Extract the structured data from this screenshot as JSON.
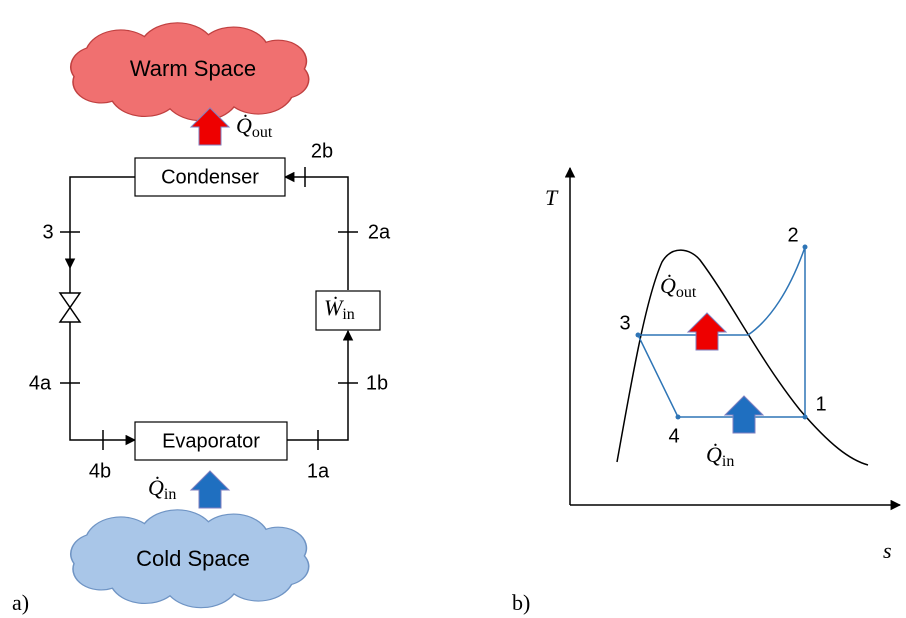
{
  "left": {
    "panel_label": "a)",
    "warm_space": "Warm Space",
    "cold_space": "Cold Space",
    "condenser": "Condenser",
    "evaporator": "Evaporator",
    "q_out": {
      "symbol": "Q̇",
      "subscript": "out"
    },
    "q_in": {
      "symbol": "Q̇",
      "subscript": "in"
    },
    "w_in": {
      "symbol": "Ẇ",
      "subscript": "in"
    },
    "states": [
      "2b",
      "3",
      "2a",
      "4a",
      "1b",
      "4b",
      "1a"
    ]
  },
  "right": {
    "panel_label": "b)",
    "y_axis": "T",
    "x_axis": "s",
    "q_out": {
      "symbol": "Q̇",
      "subscript": "out"
    },
    "q_in": {
      "symbol": "Q̇",
      "subscript": "in"
    },
    "points": [
      "1",
      "2",
      "3",
      "4"
    ]
  }
}
